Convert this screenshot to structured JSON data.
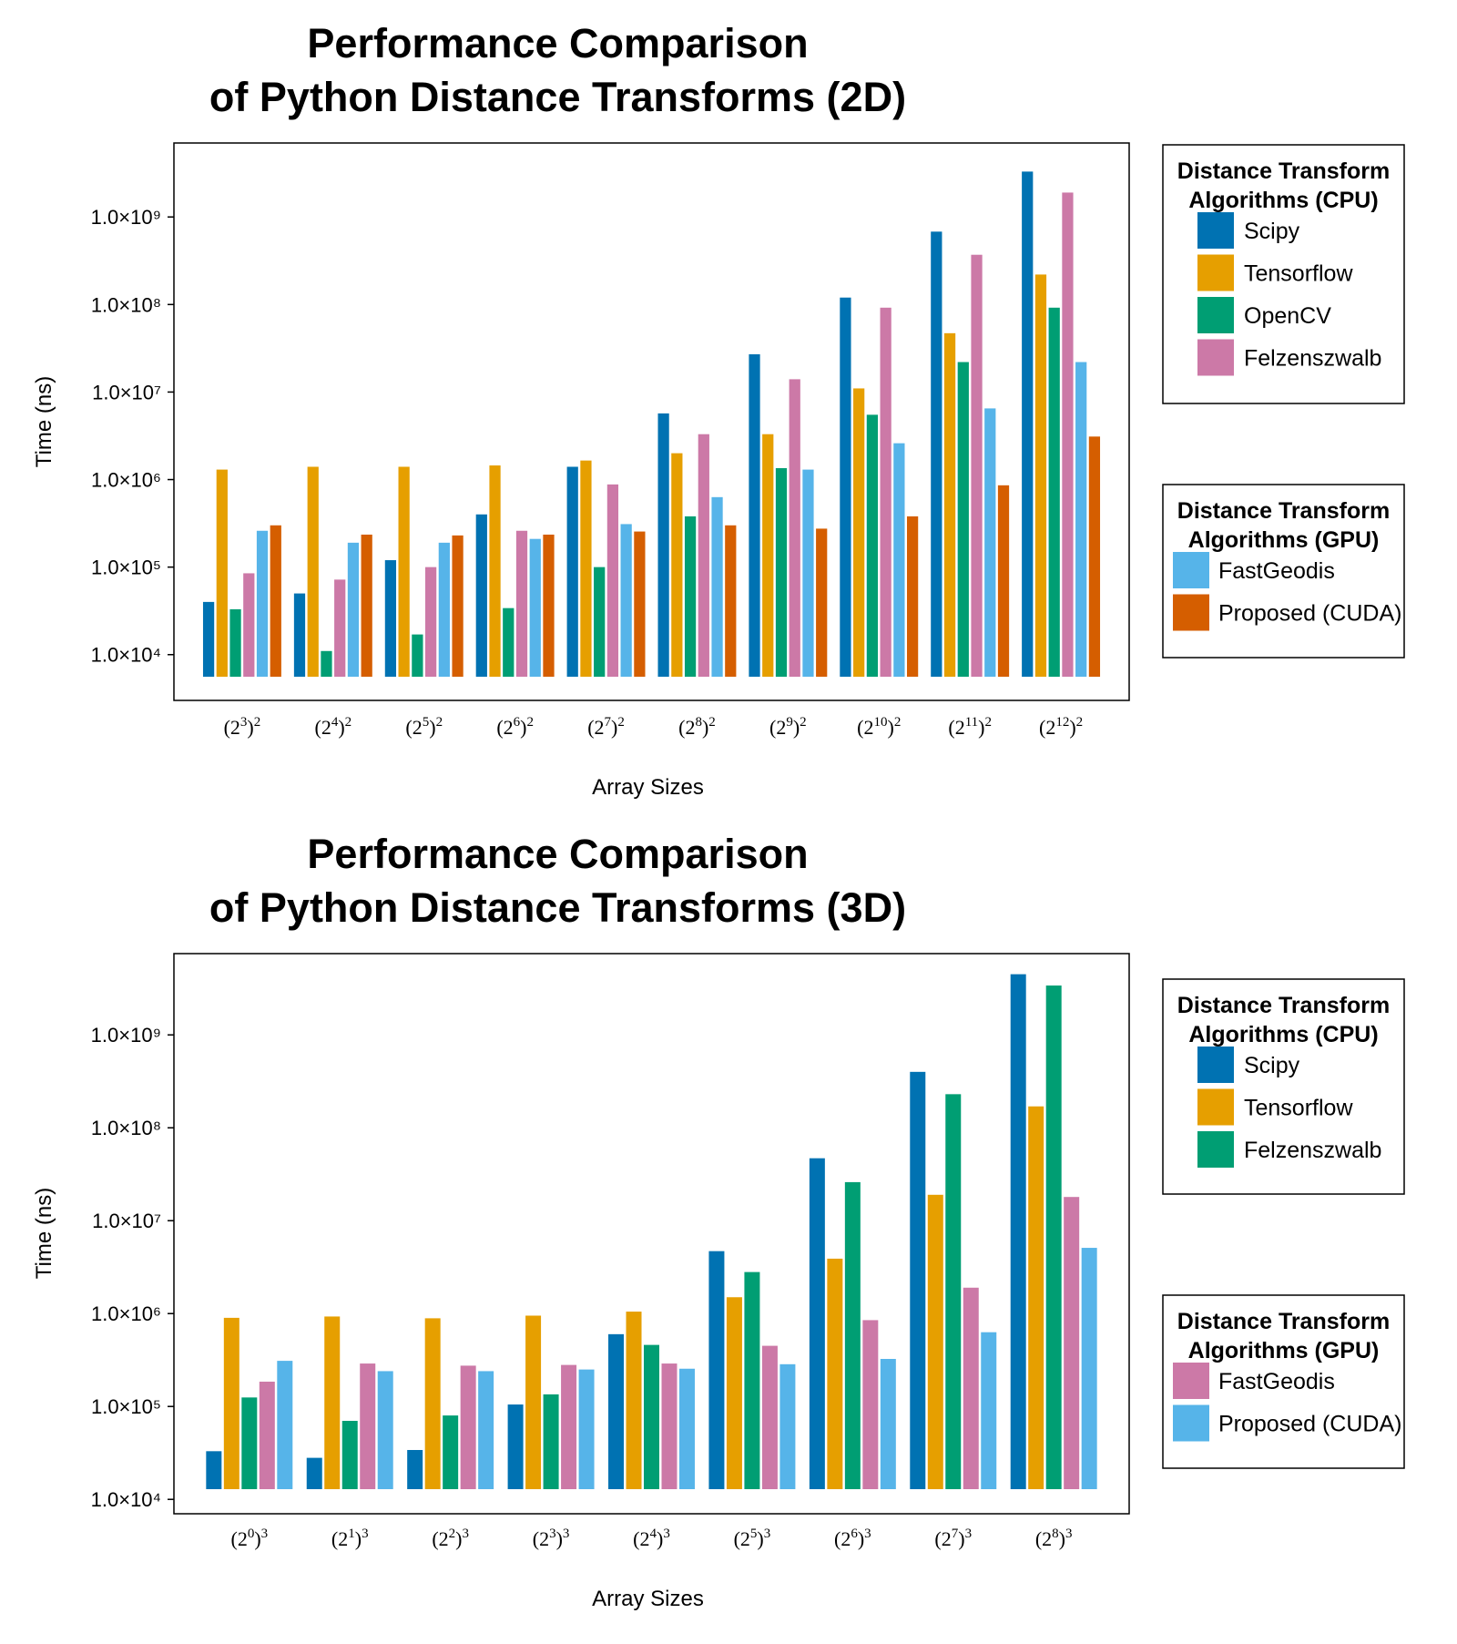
{
  "chart_data": [
    {
      "type": "bar",
      "title_lines": [
        "Performance Comparison",
        "of Python Distance Transforms (2D)"
      ],
      "xlabel": "Array Sizes",
      "ylabel": "Time (ns)",
      "yscale": "log",
      "ylim": [
        3000,
        7000000000
      ],
      "yticks": [
        {
          "value": 10000,
          "label": "1.0×10⁴"
        },
        {
          "value": 100000,
          "label": "1.0×10⁵"
        },
        {
          "value": 1000000,
          "label": "1.0×10⁶"
        },
        {
          "value": 10000000,
          "label": "1.0×10⁷"
        },
        {
          "value": 100000000,
          "label": "1.0×10⁸"
        },
        {
          "value": 1000000000,
          "label": "1.0×10⁹"
        }
      ],
      "categories": [
        {
          "base": "2",
          "exp": "3",
          "power": "2"
        },
        {
          "base": "2",
          "exp": "4",
          "power": "2"
        },
        {
          "base": "2",
          "exp": "5",
          "power": "2"
        },
        {
          "base": "2",
          "exp": "6",
          "power": "2"
        },
        {
          "base": "2",
          "exp": "7",
          "power": "2"
        },
        {
          "base": "2",
          "exp": "8",
          "power": "2"
        },
        {
          "base": "2",
          "exp": "9",
          "power": "2"
        },
        {
          "base": "2",
          "exp": "10",
          "power": "2"
        },
        {
          "base": "2",
          "exp": "11",
          "power": "2"
        },
        {
          "base": "2",
          "exp": "12",
          "power": "2"
        }
      ],
      "series": [
        {
          "name": "Scipy",
          "color": "#0072B2",
          "values": [
            40000,
            50000,
            120000,
            400000,
            1400000,
            5700000,
            27000000,
            120000000,
            680000000,
            3300000000
          ]
        },
        {
          "name": "Tensorflow",
          "color": "#E69F00",
          "values": [
            1300000,
            1400000,
            1400000,
            1450000,
            1650000,
            2000000,
            3300000,
            11000000,
            47000000,
            220000000
          ]
        },
        {
          "name": "OpenCV",
          "color": "#009E73",
          "values": [
            33000,
            11000,
            17000,
            34000,
            100000,
            380000,
            1350000,
            5500000,
            22000000,
            92000000
          ]
        },
        {
          "name": "Felzenszwalb",
          "color": "#CC79A7",
          "values": [
            85000,
            72000,
            100000,
            260000,
            880000,
            3300000,
            14000000,
            92000000,
            370000000,
            1900000000
          ]
        },
        {
          "name": "FastGeodis",
          "color": "#56B4E9",
          "values": [
            260000,
            190000,
            190000,
            210000,
            310000,
            630000,
            1300000,
            2600000,
            6500000,
            22000000
          ]
        },
        {
          "name": "Proposed (CUDA)",
          "color": "#D55E00",
          "values": [
            300000,
            235000,
            230000,
            235000,
            255000,
            300000,
            275000,
            380000,
            860000,
            3100000
          ]
        }
      ],
      "legends": [
        {
          "title_lines": [
            "Distance Transform",
            "Algorithms (CPU)"
          ],
          "items": [
            "Scipy",
            "Tensorflow",
            "OpenCV",
            "Felzenszwalb"
          ]
        },
        {
          "title_lines": [
            "Distance Transform",
            "Algorithms (GPU)"
          ],
          "items": [
            "FastGeodis",
            "Proposed (CUDA)"
          ]
        }
      ],
      "grid": false,
      "legend_position": "right"
    },
    {
      "type": "bar",
      "title_lines": [
        "Performance Comparison",
        "of Python Distance Transforms (3D)"
      ],
      "xlabel": "Array Sizes",
      "ylabel": "Time (ns)",
      "yscale": "log",
      "ylim": [
        7000,
        7500000000
      ],
      "yticks": [
        {
          "value": 10000,
          "label": "1.0×10⁴"
        },
        {
          "value": 100000,
          "label": "1.0×10⁵"
        },
        {
          "value": 1000000,
          "label": "1.0×10⁶"
        },
        {
          "value": 10000000,
          "label": "1.0×10⁷"
        },
        {
          "value": 100000000,
          "label": "1.0×10⁸"
        },
        {
          "value": 1000000000,
          "label": "1.0×10⁹"
        }
      ],
      "categories": [
        {
          "base": "2",
          "exp": "0",
          "power": "3"
        },
        {
          "base": "2",
          "exp": "1",
          "power": "3"
        },
        {
          "base": "2",
          "exp": "2",
          "power": "3"
        },
        {
          "base": "2",
          "exp": "3",
          "power": "3"
        },
        {
          "base": "2",
          "exp": "4",
          "power": "3"
        },
        {
          "base": "2",
          "exp": "5",
          "power": "3"
        },
        {
          "base": "2",
          "exp": "6",
          "power": "3"
        },
        {
          "base": "2",
          "exp": "7",
          "power": "3"
        },
        {
          "base": "2",
          "exp": "8",
          "power": "3"
        }
      ],
      "series": [
        {
          "name": "Scipy",
          "color": "#0072B2",
          "values": [
            33000,
            28000,
            34000,
            105000,
            600000,
            4700000,
            47000000,
            400000000,
            4500000000
          ]
        },
        {
          "name": "Tensorflow",
          "color": "#E69F00",
          "values": [
            900000,
            930000,
            890000,
            950000,
            1050000,
            1500000,
            3900000,
            19000000,
            170000000
          ]
        },
        {
          "name": "Felzenszwalb",
          "color": "#009E73",
          "values": [
            125000,
            70000,
            80000,
            135000,
            460000,
            2800000,
            26000000,
            230000000,
            3400000000
          ]
        },
        {
          "name": "FastGeodis",
          "color": "#CC79A7",
          "values": [
            185000,
            290000,
            275000,
            280000,
            290000,
            450000,
            850000,
            1900000,
            18000000
          ]
        },
        {
          "name": "Proposed (CUDA)",
          "color": "#56B4E9",
          "values": [
            310000,
            240000,
            240000,
            250000,
            255000,
            285000,
            325000,
            630000,
            5100000
          ]
        }
      ],
      "legends": [
        {
          "title_lines": [
            "Distance Transform",
            "Algorithms (CPU)"
          ],
          "items": [
            "Scipy",
            "Tensorflow",
            "Felzenszwalb"
          ]
        },
        {
          "title_lines": [
            "Distance Transform",
            "Algorithms (GPU)"
          ],
          "items": [
            "FastGeodis",
            "Proposed (CUDA)"
          ]
        }
      ],
      "grid": false,
      "legend_position": "right"
    }
  ]
}
